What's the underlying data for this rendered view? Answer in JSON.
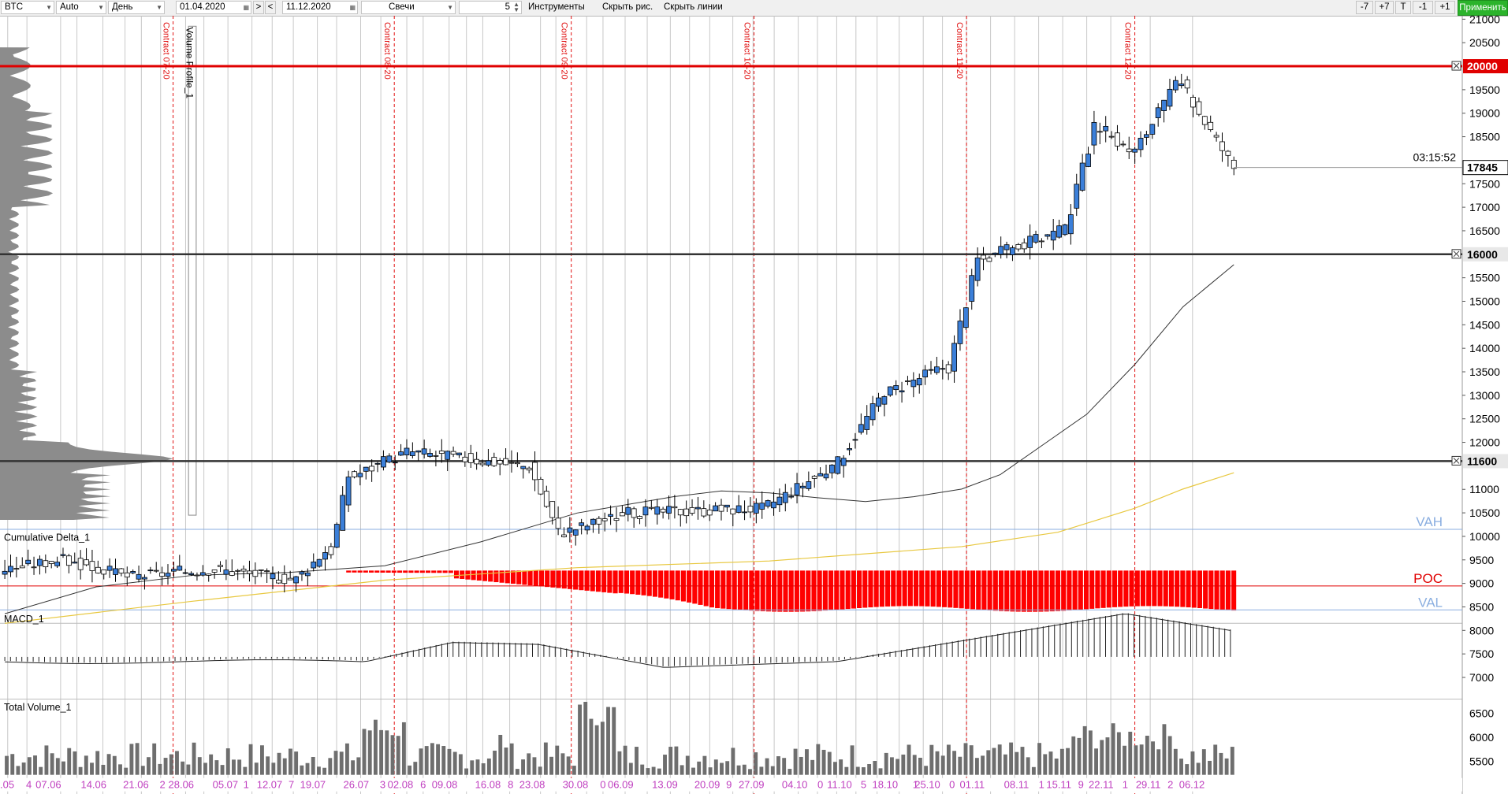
{
  "toolbar": {
    "symbol": "BTC",
    "scale": "Auto",
    "period": "День",
    "date_from": "01.04.2020",
    "nav_left": "<",
    "nav_right": ">",
    "date_to": "11.12.2020",
    "chart_type": "Свечи",
    "step": "5",
    "instruments": "Инструменты",
    "hide_drawings": "Скрыть рис.",
    "hide_lines": "Скрыть линии",
    "zoom_minus7": "-7",
    "zoom_plus7": "+7",
    "zoom_t": "T",
    "zoom_minus1": "-1",
    "zoom_plus1": "+1",
    "apply": "Применить"
  },
  "panels": {
    "cumulative_delta": "Cumulative Delta_1",
    "macd": "MACD_1",
    "total_volume": "Total Volume_1",
    "volume_profile": "Volume Profile_1"
  },
  "price_axis": {
    "ticks": [
      "21000",
      "20500",
      "19500",
      "19000",
      "18500",
      "17500",
      "17000",
      "16500",
      "15500",
      "15000",
      "14500",
      "14000",
      "13500",
      "13000",
      "12500",
      "12000",
      "11000",
      "10500",
      "10000",
      "9500",
      "9000",
      "8500",
      "8000",
      "7500",
      "7000"
    ],
    "tick_values": [
      21000,
      20500,
      19500,
      19000,
      18500,
      17500,
      17000,
      16500,
      15500,
      15000,
      14500,
      14000,
      13500,
      13000,
      12500,
      12000,
      11000,
      10500,
      10000,
      9500,
      9000,
      8500,
      8000,
      7500,
      7000
    ],
    "last_price": "17845",
    "timer": "03:15:52"
  },
  "volume_axis": {
    "ticks": [
      "6500",
      "6000",
      "5500"
    ]
  },
  "levels": [
    {
      "price": "20000",
      "color": "#e00000"
    },
    {
      "price": "16000",
      "color": "#333333"
    },
    {
      "price": "11600",
      "color": "#333333"
    }
  ],
  "profile_labels": {
    "vah": "VAH",
    "poc": "POC",
    "val": "VAL"
  },
  "contracts": [
    "Contract 07-20",
    "Contract 08-20",
    "Contract 09-20",
    "Contract 10-20",
    "Contract 11-20",
    "Contract 12-20"
  ],
  "date_labels": [
    ".05",
    "4",
    "07.06",
    "14.06",
    "21.06",
    "2",
    "28.06",
    "05.07",
    "1",
    "12.07",
    "7",
    "19.07",
    "26.07",
    "3",
    "02.08",
    "6",
    "09.08",
    "16.08",
    "8",
    "23.08",
    "30.08",
    "0",
    "06.09",
    "13.09",
    "20.09",
    "9",
    "27.09",
    "04.10",
    "0",
    "11.10",
    "5",
    "18.10",
    "1",
    "25.10",
    "0",
    "01.11",
    "08.11",
    "1",
    "15.11",
    "9",
    "22.11",
    "1",
    "29.11",
    "2",
    "06.12"
  ],
  "colors": {
    "bull": "#3b7fd9",
    "bear": "#ffffff",
    "delta": "#ff0000",
    "sma_fast": "#333333",
    "sma_slow": "#e8c840",
    "vah_val": "#8aaee0",
    "poc": "#e00000",
    "grid": "#c8c8c8",
    "date_label": "#c040c0",
    "apply": "#2bb32b"
  }
}
